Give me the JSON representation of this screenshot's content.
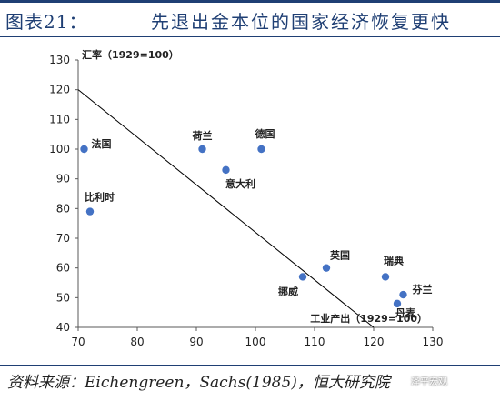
{
  "header": {
    "figure_label": "图表21：",
    "title": "先退出金本位的国家经济恢复更快"
  },
  "footer": {
    "source": "资料来源：Eichengreen，Sachs(1985)，恒大研究院",
    "watermark": "泽平宏观"
  },
  "colors": {
    "accent": "#1f3f74",
    "point": "#4472c4",
    "axis": "#595959",
    "trendline": "#000000"
  },
  "chart_data": {
    "type": "scatter",
    "title": "",
    "xlabel": "工业产出（1929=100）",
    "ylabel": "汇率（1929=100）",
    "xlim": [
      70,
      130
    ],
    "ylim": [
      40,
      130
    ],
    "xticks": [
      70,
      80,
      90,
      100,
      110,
      120,
      130
    ],
    "yticks": [
      40,
      50,
      60,
      70,
      80,
      90,
      100,
      110,
      120,
      130
    ],
    "grid": false,
    "legend": "none",
    "points": [
      {
        "label": "法国",
        "x": 71,
        "y": 100
      },
      {
        "label": "荷兰",
        "x": 91,
        "y": 100
      },
      {
        "label": "德国",
        "x": 101,
        "y": 100
      },
      {
        "label": "意大利",
        "x": 95,
        "y": 93
      },
      {
        "label": "比利时",
        "x": 72,
        "y": 79
      },
      {
        "label": "英国",
        "x": 112,
        "y": 60
      },
      {
        "label": "挪威",
        "x": 108,
        "y": 57
      },
      {
        "label": "瑞典",
        "x": 122,
        "y": 57
      },
      {
        "label": "芬兰",
        "x": 125,
        "y": 51
      },
      {
        "label": "丹麦",
        "x": 124,
        "y": 48
      }
    ],
    "trendline": {
      "x": [
        70,
        120
      ],
      "y": [
        120,
        40
      ]
    }
  }
}
